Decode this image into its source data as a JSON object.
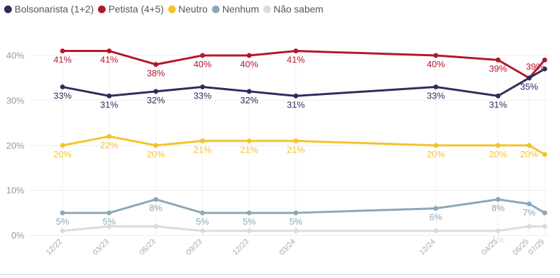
{
  "chart_data": {
    "type": "line",
    "title": "",
    "xlabel": "",
    "ylabel": "",
    "categories": [
      "12/22",
      "03/23",
      "06/23",
      "09/23",
      "12/23",
      "03/24",
      "12/24",
      "04/25",
      "06/25",
      "07/25"
    ],
    "x_dates": [
      "2022-12",
      "2023-03",
      "2023-06",
      "2023-09",
      "2023-12",
      "2024-03",
      "2024-12",
      "2025-04",
      "2025-06",
      "2025-07"
    ],
    "ylim": [
      0,
      45
    ],
    "yticks": [
      0,
      10,
      20,
      30,
      40
    ],
    "ytick_labels": [
      "0%",
      "10%",
      "20%",
      "30%",
      "40%"
    ],
    "grid": true,
    "legend_position": "top-left",
    "series": [
      {
        "name": "Bolsonarista (1+2)",
        "color": "#2e2c5e",
        "values": [
          33,
          31,
          32,
          33,
          32,
          31,
          33,
          31,
          35,
          37
        ],
        "labels": [
          "33%",
          "31%",
          "32%",
          "33%",
          "32%",
          "31%",
          "33%",
          "31%",
          "35%",
          ""
        ]
      },
      {
        "name": "Petista (4+5)",
        "color": "#b5162b",
        "values": [
          41,
          41,
          38,
          40,
          40,
          41,
          40,
          39,
          35,
          39
        ],
        "labels": [
          "41%",
          "41%",
          "38%",
          "40%",
          "40%",
          "41%",
          "40%",
          "39%",
          "",
          "39%"
        ]
      },
      {
        "name": "Neutro",
        "color": "#f5c22b",
        "values": [
          20,
          22,
          20,
          21,
          21,
          21,
          20,
          20,
          20,
          18
        ],
        "labels": [
          "20%",
          "22%",
          "20%",
          "21%",
          "21%",
          "21%",
          "20%",
          "20%",
          "20%",
          ""
        ]
      },
      {
        "name": "Nenhum",
        "color": "#8ba7b8",
        "values": [
          5,
          5,
          8,
          5,
          5,
          5,
          6,
          8,
          7,
          5
        ],
        "labels": [
          "5%",
          "5%",
          "8%",
          "5%",
          "5%",
          "5%",
          "6%",
          "8%",
          "7%",
          ""
        ]
      },
      {
        "name": "Não sabem",
        "color": "#dcdcdc",
        "values": [
          1,
          2,
          2,
          1,
          1,
          1,
          1,
          1,
          2,
          2
        ],
        "labels": [
          "",
          "",
          "",
          "",
          "",
          "",
          "",
          "1%",
          "",
          ""
        ]
      }
    ]
  }
}
